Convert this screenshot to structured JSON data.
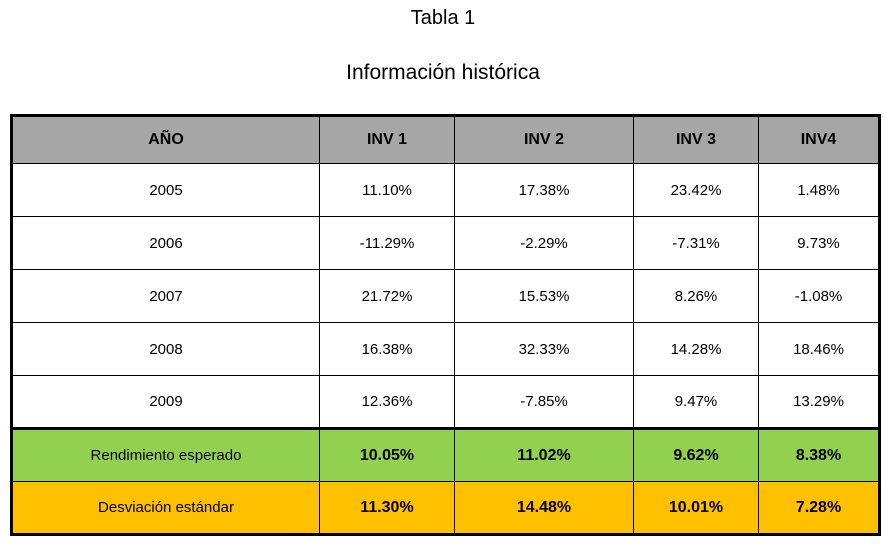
{
  "chart_data": {
    "type": "table",
    "title": "Tabla 1",
    "subtitle": "Información histórica",
    "columns": [
      "AÑO",
      "INV 1",
      "INV 2",
      "INV 3",
      "INV4"
    ],
    "rows": [
      {
        "label": "2005",
        "values": [
          "11.10%",
          "17.38%",
          "23.42%",
          "1.48%"
        ]
      },
      {
        "label": "2006",
        "values": [
          "-11.29%",
          "-2.29%",
          "-7.31%",
          "9.73%"
        ]
      },
      {
        "label": "2007",
        "values": [
          "21.72%",
          "15.53%",
          "8.26%",
          "-1.08%"
        ]
      },
      {
        "label": "2008",
        "values": [
          "16.38%",
          "32.33%",
          "14.28%",
          "18.46%"
        ]
      },
      {
        "label": "2009",
        "values": [
          "12.36%",
          "-7.85%",
          "9.47%",
          "13.29%"
        ]
      }
    ],
    "summary": [
      {
        "label": "Rendimiento esperado",
        "values": [
          "10.05%",
          "11.02%",
          "9.62%",
          "8.38%"
        ]
      },
      {
        "label": "Desviación estándar",
        "values": [
          "11.30%",
          "14.48%",
          "10.01%",
          "7.28%"
        ]
      }
    ],
    "colors": {
      "header_bg": "#a6a6a6",
      "expected_return_bg": "#92d050",
      "std_deviation_bg": "#ffc000",
      "border": "#000000",
      "text": "#000000",
      "background": "#ffffff"
    }
  }
}
